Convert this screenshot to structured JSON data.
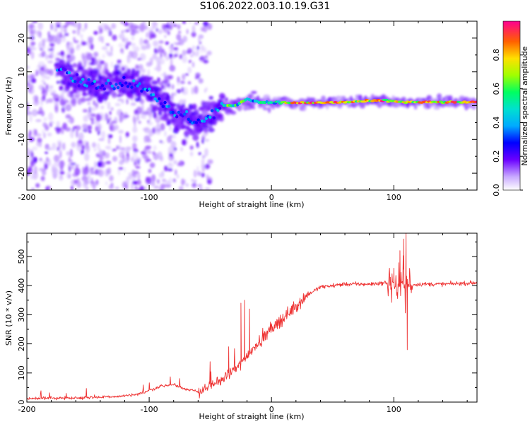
{
  "title": "S106.2022.003.10.19.G31",
  "chart_data": [
    {
      "type": "heatmap",
      "xlabel": "Height of straight line (km)",
      "ylabel": "Frequency (Hz)",
      "xlim": [
        -200,
        168
      ],
      "ylim": [
        -25,
        25
      ],
      "xticks": [
        -200,
        -100,
        0,
        100
      ],
      "yticks": [
        -20,
        -10,
        0,
        10,
        20
      ],
      "colorbar": {
        "label": "Normalized spectral amplitude",
        "range": [
          0,
          1
        ],
        "ticks": [
          "0.0",
          "0.2",
          "0.4",
          "0.6",
          "0.8"
        ]
      },
      "ridge": {
        "description_points_km_hz": [
          [
            -170,
            11
          ],
          [
            -160,
            7
          ],
          [
            -140,
            6
          ],
          [
            -120,
            7
          ],
          [
            -100,
            5
          ],
          [
            -90,
            1
          ],
          [
            -80,
            -3
          ],
          [
            -70,
            -3
          ],
          [
            -60,
            -5
          ],
          [
            -50,
            -3
          ],
          [
            -40,
            0
          ],
          [
            -30,
            0
          ],
          [
            -20,
            2
          ],
          [
            -10,
            1
          ],
          [
            0,
            1
          ],
          [
            20,
            0.8
          ],
          [
            60,
            1
          ],
          [
            90,
            1.5
          ],
          [
            110,
            1
          ],
          [
            168,
            1
          ]
        ],
        "peak_amplitude_range_km": [
          10,
          168
        ]
      }
    },
    {
      "type": "line",
      "xlabel": "Height of straight line (km)",
      "ylabel": "SNR (10 * v/v)",
      "xlim": [
        -200,
        168
      ],
      "ylim": [
        0,
        580
      ],
      "xticks": [
        -200,
        -100,
        0,
        100
      ],
      "yticks": [
        0,
        100,
        200,
        300,
        400,
        500
      ],
      "color": "#ee3333",
      "series": [
        {
          "envelope_km_snr": [
            [
              -200,
              12
            ],
            [
              -160,
              15
            ],
            [
              -130,
              18
            ],
            [
              -110,
              25
            ],
            [
              -100,
              40
            ],
            [
              -90,
              55
            ],
            [
              -80,
              60
            ],
            [
              -70,
              45
            ],
            [
              -60,
              35
            ],
            [
              -50,
              55
            ],
            [
              -40,
              80
            ],
            [
              -30,
              110
            ],
            [
              -20,
              160
            ],
            [
              -10,
              210
            ],
            [
              0,
              250
            ],
            [
              10,
              290
            ],
            [
              20,
              330
            ],
            [
              30,
              370
            ],
            [
              40,
              395
            ],
            [
              60,
              405
            ],
            [
              80,
              405
            ],
            [
              95,
              410
            ],
            [
              100,
              400
            ],
            [
              110,
              400
            ],
            [
              120,
              405
            ],
            [
              140,
              405
            ],
            [
              168,
              410
            ]
          ],
          "spikes_km_snr": [
            [
              -35,
              190
            ],
            [
              -25,
              340
            ],
            [
              -22,
              350
            ],
            [
              -18,
              320
            ],
            [
              100,
              460
            ],
            [
              105,
              520
            ],
            [
              108,
              560
            ],
            [
              110,
              580
            ],
            [
              111,
              180
            ]
          ]
        }
      ]
    }
  ]
}
